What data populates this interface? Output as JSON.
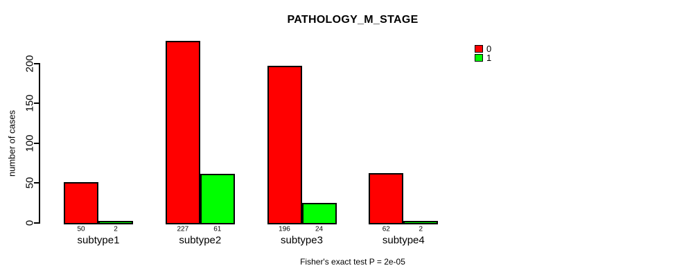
{
  "title": "PATHOLOGY_M_STAGE",
  "y_axis": {
    "label": "number of cases",
    "ticks": [
      0,
      50,
      100,
      150,
      200
    ]
  },
  "legend": {
    "items": [
      {
        "label": "0",
        "color": "#ff0000"
      },
      {
        "label": "1",
        "color": "#00ff00"
      }
    ]
  },
  "footer": "Fisher's exact test P = 2e-05",
  "colors": {
    "series0": "#ff0000",
    "series1": "#00ff00",
    "axis": "#000000",
    "background": "#ffffff"
  },
  "chart_data": {
    "type": "bar",
    "title": "PATHOLOGY_M_STAGE",
    "categories": [
      "subtype1",
      "subtype2",
      "subtype3",
      "subtype4"
    ],
    "series": [
      {
        "name": "0",
        "color": "#ff0000",
        "values": [
          50,
          227,
          196,
          62
        ]
      },
      {
        "name": "1",
        "color": "#00ff00",
        "values": [
          2,
          61,
          24,
          2
        ]
      }
    ],
    "bar_value_labels": [
      [
        50,
        227,
        196,
        62
      ],
      [
        2,
        61,
        24,
        2
      ]
    ],
    "xlabel": "",
    "ylabel": "number of cases",
    "ylim": [
      0,
      230
    ],
    "yticks": [
      0,
      50,
      100,
      150,
      200
    ],
    "grid": false,
    "legend_position": "top-right",
    "annotation": "Fisher's exact test P = 2e-05"
  }
}
